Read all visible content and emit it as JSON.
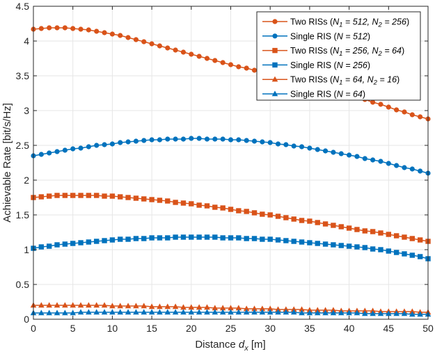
{
  "chart_data": {
    "type": "line",
    "title": "",
    "xlabel_main": "Distance ",
    "xlabel_var": "d",
    "xlabel_sub": "x",
    "xlabel_unit": " [m]",
    "ylabel": "Achievable Rate [bit/s/Hz]",
    "xlim": [
      0,
      50
    ],
    "ylim": [
      0,
      4.5
    ],
    "xticks": [
      0,
      5,
      10,
      15,
      20,
      25,
      30,
      35,
      40,
      45,
      50
    ],
    "yticks": [
      0,
      0.5,
      1,
      1.5,
      2,
      2.5,
      3,
      3.5,
      4,
      4.5
    ],
    "xtick_labels": [
      "0",
      "5",
      "10",
      "15",
      "20",
      "25",
      "30",
      "35",
      "40",
      "45",
      "50"
    ],
    "ytick_labels": [
      "0",
      "0.5",
      "1",
      "1.5",
      "2",
      "2.5",
      "3",
      "3.5",
      "4",
      "4.5"
    ],
    "grid": true,
    "legend_position": "top-right",
    "colors": {
      "two_ris": "#D95319",
      "single_ris": "#0072BD",
      "axis": "#262626",
      "grid": "#e6e6e6"
    },
    "x": [
      0,
      1,
      2,
      3,
      4,
      5,
      6,
      7,
      8,
      9,
      10,
      11,
      12,
      13,
      14,
      15,
      16,
      17,
      18,
      19,
      20,
      21,
      22,
      23,
      24,
      25,
      26,
      27,
      28,
      29,
      30,
      31,
      32,
      33,
      34,
      35,
      36,
      37,
      38,
      39,
      40,
      41,
      42,
      43,
      44,
      45,
      46,
      47,
      48,
      49,
      50
    ],
    "series": [
      {
        "name": "Two RISs (N1 = 512, N2 = 256)",
        "legend": {
          "pre": "Two RISs (",
          "parts": [
            [
              "N",
              "1",
              " = 512, "
            ],
            [
              "N",
              "2",
              " = 256"
            ]
          ],
          "post": ")"
        },
        "color": "two_ris",
        "marker": "circle",
        "values": [
          4.17,
          4.18,
          4.19,
          4.19,
          4.19,
          4.18,
          4.17,
          4.16,
          4.14,
          4.12,
          4.1,
          4.08,
          4.05,
          4.02,
          3.99,
          3.96,
          3.93,
          3.9,
          3.87,
          3.84,
          3.81,
          3.78,
          3.75,
          3.72,
          3.69,
          3.66,
          3.63,
          3.61,
          3.58,
          3.56,
          3.54,
          3.51,
          3.49,
          3.46,
          3.43,
          3.4,
          3.37,
          3.33,
          3.3,
          3.26,
          3.23,
          3.19,
          3.16,
          3.12,
          3.09,
          3.05,
          3.01,
          2.98,
          2.94,
          2.91,
          2.88
        ]
      },
      {
        "name": "Single RIS (N = 512)",
        "legend": {
          "pre": "Single RIS (",
          "parts": [
            [
              "N",
              "",
              " = 512"
            ]
          ],
          "post": ")"
        },
        "color": "single_ris",
        "marker": "circle",
        "values": [
          2.35,
          2.37,
          2.39,
          2.41,
          2.43,
          2.45,
          2.46,
          2.48,
          2.5,
          2.51,
          2.52,
          2.54,
          2.55,
          2.56,
          2.57,
          2.58,
          2.58,
          2.59,
          2.59,
          2.59,
          2.6,
          2.6,
          2.59,
          2.59,
          2.59,
          2.58,
          2.58,
          2.57,
          2.56,
          2.55,
          2.54,
          2.52,
          2.51,
          2.49,
          2.48,
          2.46,
          2.44,
          2.42,
          2.4,
          2.38,
          2.36,
          2.34,
          2.31,
          2.29,
          2.27,
          2.24,
          2.21,
          2.18,
          2.16,
          2.13,
          2.1
        ]
      },
      {
        "name": "Two RISs (N1 = 256, N2 = 64)",
        "legend": {
          "pre": "Two RISs (",
          "parts": [
            [
              "N",
              "1",
              " = 256, "
            ],
            [
              "N",
              "2",
              " = 64"
            ]
          ],
          "post": ")"
        },
        "color": "two_ris",
        "marker": "square",
        "values": [
          1.75,
          1.76,
          1.77,
          1.78,
          1.78,
          1.78,
          1.78,
          1.78,
          1.78,
          1.77,
          1.77,
          1.76,
          1.75,
          1.74,
          1.73,
          1.72,
          1.71,
          1.7,
          1.68,
          1.67,
          1.66,
          1.64,
          1.63,
          1.61,
          1.6,
          1.58,
          1.56,
          1.55,
          1.53,
          1.51,
          1.5,
          1.48,
          1.46,
          1.44,
          1.42,
          1.41,
          1.39,
          1.37,
          1.35,
          1.33,
          1.31,
          1.29,
          1.27,
          1.26,
          1.24,
          1.22,
          1.2,
          1.18,
          1.16,
          1.14,
          1.12
        ]
      },
      {
        "name": "Single RIS (N = 256)",
        "legend": {
          "pre": "Single RIS (",
          "parts": [
            [
              "N",
              "",
              " = 256"
            ]
          ],
          "post": ")"
        },
        "color": "single_ris",
        "marker": "square",
        "values": [
          1.02,
          1.04,
          1.05,
          1.07,
          1.08,
          1.09,
          1.1,
          1.11,
          1.12,
          1.13,
          1.14,
          1.15,
          1.15,
          1.16,
          1.16,
          1.17,
          1.17,
          1.17,
          1.18,
          1.18,
          1.18,
          1.18,
          1.18,
          1.18,
          1.17,
          1.17,
          1.17,
          1.16,
          1.16,
          1.15,
          1.15,
          1.14,
          1.13,
          1.12,
          1.11,
          1.1,
          1.09,
          1.08,
          1.07,
          1.06,
          1.05,
          1.04,
          1.03,
          1.01,
          1.0,
          0.98,
          0.96,
          0.94,
          0.92,
          0.9,
          0.87
        ]
      },
      {
        "name": "Two RISs (N1 = 64, N2 = 16)",
        "legend": {
          "pre": "Two RISs (",
          "parts": [
            [
              "N",
              "1",
              " = 64, "
            ],
            [
              "N",
              "2",
              " = 16"
            ]
          ],
          "post": ")"
        },
        "color": "two_ris",
        "marker": "triangle",
        "values": [
          0.2,
          0.2,
          0.2,
          0.2,
          0.2,
          0.2,
          0.2,
          0.2,
          0.2,
          0.2,
          0.19,
          0.19,
          0.19,
          0.19,
          0.19,
          0.18,
          0.18,
          0.18,
          0.18,
          0.17,
          0.17,
          0.17,
          0.17,
          0.16,
          0.16,
          0.16,
          0.16,
          0.15,
          0.15,
          0.15,
          0.15,
          0.14,
          0.14,
          0.14,
          0.14,
          0.13,
          0.13,
          0.13,
          0.13,
          0.12,
          0.12,
          0.12,
          0.12,
          0.12,
          0.11,
          0.11,
          0.11,
          0.11,
          0.11,
          0.1,
          0.1
        ]
      },
      {
        "name": "Single RIS (N = 64)",
        "legend": {
          "pre": "Single RIS (",
          "parts": [
            [
              "N",
              "",
              " = 64"
            ]
          ],
          "post": ")"
        },
        "color": "single_ris",
        "marker": "triangle",
        "values": [
          0.09,
          0.09,
          0.09,
          0.09,
          0.09,
          0.09,
          0.1,
          0.1,
          0.1,
          0.1,
          0.1,
          0.1,
          0.1,
          0.1,
          0.1,
          0.1,
          0.1,
          0.1,
          0.1,
          0.1,
          0.1,
          0.1,
          0.1,
          0.1,
          0.1,
          0.1,
          0.1,
          0.1,
          0.1,
          0.1,
          0.1,
          0.1,
          0.1,
          0.1,
          0.09,
          0.09,
          0.09,
          0.09,
          0.09,
          0.09,
          0.09,
          0.09,
          0.08,
          0.08,
          0.08,
          0.08,
          0.08,
          0.08,
          0.07,
          0.07,
          0.07
        ]
      }
    ]
  }
}
